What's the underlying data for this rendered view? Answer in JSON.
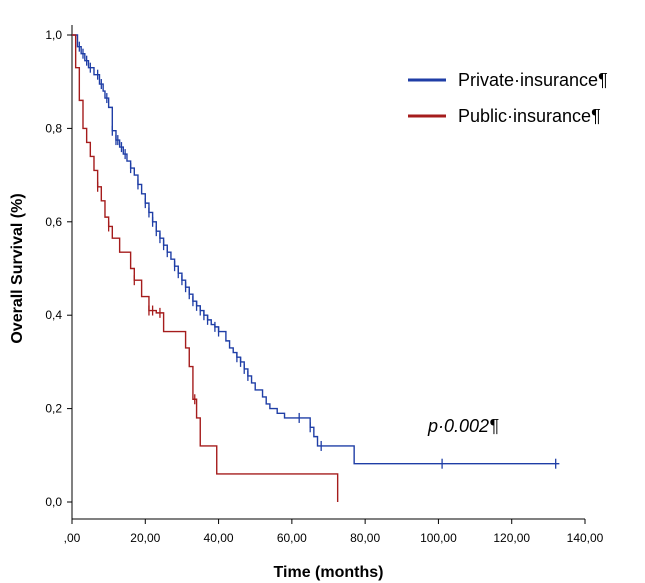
{
  "chart_data": {
    "type": "line",
    "title": "",
    "xlabel": "Time (months)",
    "ylabel": "Overall Survival (%)",
    "xlim": [
      0,
      140
    ],
    "ylim": [
      0,
      1
    ],
    "x_ticks": [
      ",00",
      "20,00",
      "40,00",
      "60,00",
      "80,00",
      "100,00",
      "120,00",
      "140,00"
    ],
    "y_ticks": [
      "0,0",
      "0,2",
      "0,4",
      "0,6",
      "0,8",
      "1,0"
    ],
    "legend_position": "top-right",
    "grid": false,
    "annotation": "p·0.002¶",
    "series": [
      {
        "name": "Private·insurance¶",
        "color": "#1f3ea6",
        "points": [
          [
            0,
            1.0
          ],
          [
            1.5,
            0.975
          ],
          [
            2.5,
            0.96
          ],
          [
            3.5,
            0.945
          ],
          [
            4.5,
            0.93
          ],
          [
            6,
            0.915
          ],
          [
            7.5,
            0.895
          ],
          [
            8.5,
            0.88
          ],
          [
            9,
            0.865
          ],
          [
            10,
            0.845
          ],
          [
            11,
            0.795
          ],
          [
            12,
            0.775
          ],
          [
            13,
            0.76
          ],
          [
            14,
            0.745
          ],
          [
            15,
            0.73
          ],
          [
            16,
            0.715
          ],
          [
            17,
            0.7
          ],
          [
            18,
            0.68
          ],
          [
            19,
            0.66
          ],
          [
            20,
            0.64
          ],
          [
            21,
            0.62
          ],
          [
            22,
            0.6
          ],
          [
            23,
            0.58
          ],
          [
            24,
            0.565
          ],
          [
            25,
            0.55
          ],
          [
            26,
            0.535
          ],
          [
            27,
            0.52
          ],
          [
            28,
            0.505
          ],
          [
            29,
            0.49
          ],
          [
            30,
            0.475
          ],
          [
            31,
            0.46
          ],
          [
            32,
            0.445
          ],
          [
            33,
            0.43
          ],
          [
            34,
            0.42
          ],
          [
            35,
            0.41
          ],
          [
            36,
            0.4
          ],
          [
            37,
            0.39
          ],
          [
            38,
            0.38
          ],
          [
            39,
            0.375
          ],
          [
            40,
            0.365
          ],
          [
            42,
            0.345
          ],
          [
            43,
            0.33
          ],
          [
            44,
            0.32
          ],
          [
            45,
            0.31
          ],
          [
            46,
            0.3
          ],
          [
            47,
            0.285
          ],
          [
            48,
            0.27
          ],
          [
            49,
            0.255
          ],
          [
            50,
            0.24
          ],
          [
            52,
            0.225
          ],
          [
            53,
            0.21
          ],
          [
            54,
            0.2
          ],
          [
            56,
            0.19
          ],
          [
            58,
            0.18
          ],
          [
            62,
            0.18
          ],
          [
            65,
            0.16
          ],
          [
            66,
            0.14
          ],
          [
            67,
            0.12
          ],
          [
            70,
            0.12
          ],
          [
            77,
            0.082
          ],
          [
            133,
            0.082
          ]
        ],
        "censor_x": [
          2,
          3,
          4,
          5,
          7,
          8,
          9.5,
          11,
          12,
          12.5,
          13.5,
          14.5,
          16,
          18,
          20,
          21,
          22,
          23,
          24,
          25,
          26,
          28,
          29,
          30,
          31,
          32,
          33,
          34,
          35,
          36,
          37,
          39,
          40,
          45,
          46,
          47,
          48,
          62,
          65,
          68,
          101,
          132
        ]
      },
      {
        "name": "Public·insurance¶",
        "color": "#a51c1c",
        "points": [
          [
            0,
            1.0
          ],
          [
            1,
            0.93
          ],
          [
            2,
            0.86
          ],
          [
            3,
            0.8
          ],
          [
            4,
            0.77
          ],
          [
            5,
            0.74
          ],
          [
            6,
            0.71
          ],
          [
            7,
            0.675
          ],
          [
            8,
            0.645
          ],
          [
            9,
            0.61
          ],
          [
            10,
            0.59
          ],
          [
            11,
            0.565
          ],
          [
            13,
            0.535
          ],
          [
            16,
            0.5
          ],
          [
            17,
            0.475
          ],
          [
            19,
            0.44
          ],
          [
            21,
            0.41
          ],
          [
            23,
            0.405
          ],
          [
            25,
            0.365
          ],
          [
            30,
            0.365
          ],
          [
            31,
            0.33
          ],
          [
            32,
            0.29
          ],
          [
            33,
            0.22
          ],
          [
            34,
            0.18
          ],
          [
            35,
            0.12
          ],
          [
            39,
            0.12
          ],
          [
            39.5,
            0.06
          ],
          [
            72.5,
            0.06
          ],
          [
            72.5,
            0.0
          ]
        ],
        "censor_x": [
          7,
          10,
          17,
          21,
          22,
          24,
          33.5
        ]
      }
    ]
  }
}
